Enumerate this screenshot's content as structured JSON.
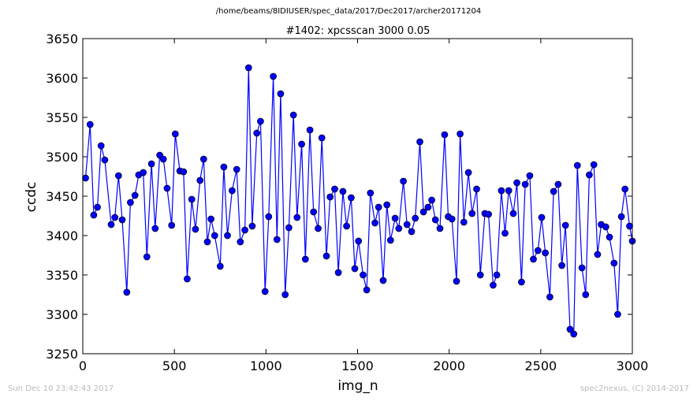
{
  "suptitle": "/home/beams/8IDIUSER/spec_data/2017/Dec2017/archer20171204",
  "footer": {
    "left": "Sun Dec 10 23:42:43 2017",
    "right": "spec2nexus, (C) 2014-2017"
  },
  "colors": {
    "series": "#0000ff",
    "axes": "#000000",
    "footer": "#bbbbbb"
  },
  "chart_data": {
    "type": "line",
    "title": "#1402: xpcsscan 3000 0.05",
    "xlabel": "img_n",
    "ylabel": "ccdc",
    "xlim": [
      0,
      3000
    ],
    "ylim": [
      3250,
      3650
    ],
    "xticks": [
      0,
      500,
      1000,
      1500,
      2000,
      2500,
      3000
    ],
    "yticks": [
      3250,
      3300,
      3350,
      3400,
      3450,
      3500,
      3550,
      3600,
      3650
    ],
    "grid": false,
    "marker": "circle",
    "series": [
      {
        "x": [
          15,
          40,
          60,
          80,
          100,
          120,
          155,
          175,
          195,
          215,
          240,
          260,
          285,
          305,
          330,
          350,
          375,
          395,
          420,
          440,
          460,
          485,
          505,
          530,
          550,
          570,
          595,
          615,
          640,
          660,
          680,
          700,
          720,
          750,
          770,
          790,
          815,
          840,
          860,
          885,
          905,
          925,
          950,
          970,
          995,
          1015,
          1040,
          1060,
          1080,
          1105,
          1125,
          1150,
          1170,
          1195,
          1215,
          1240,
          1260,
          1285,
          1305,
          1330,
          1350,
          1375,
          1395,
          1420,
          1440,
          1465,
          1485,
          1505,
          1530,
          1550,
          1570,
          1595,
          1615,
          1640,
          1660,
          1680,
          1705,
          1725,
          1750,
          1770,
          1795,
          1815,
          1840,
          1860,
          1885,
          1905,
          1925,
          1950,
          1975,
          1995,
          2015,
          2040,
          2060,
          2080,
          2105,
          2125,
          2150,
          2170,
          2195,
          2215,
          2240,
          2260,
          2285,
          2305,
          2325,
          2350,
          2370,
          2395,
          2415,
          2440,
          2460,
          2485,
          2505,
          2525,
          2550,
          2570,
          2595,
          2615,
          2635,
          2660,
          2680,
          2700,
          2725,
          2745,
          2765,
          2790,
          2810,
          2830,
          2855,
          2875,
          2900,
          2920,
          2940,
          2960,
          2985,
          3000
        ],
        "y": [
          3473,
          3541,
          3426,
          3436,
          3514,
          3496,
          3414,
          3423,
          3476,
          3420,
          3328,
          3442,
          3451,
          3477,
          3480,
          3373,
          3491,
          3409,
          3502,
          3497,
          3460,
          3413,
          3529,
          3482,
          3481,
          3345,
          3446,
          3408,
          3470,
          3497,
          3392,
          3421,
          3400,
          3361,
          3487,
          3400,
          3457,
          3484,
          3392,
          3407,
          3613,
          3412,
          3530,
          3545,
          3329,
          3424,
          3602,
          3395,
          3580,
          3325,
          3410,
          3553,
          3423,
          3516,
          3370,
          3534,
          3430,
          3409,
          3524,
          3374,
          3449,
          3459,
          3353,
          3456,
          3412,
          3448,
          3358,
          3393,
          3350,
          3331,
          3454,
          3416,
          3436,
          3343,
          3439,
          3394,
          3422,
          3409,
          3469,
          3414,
          3405,
          3422,
          3519,
          3430,
          3436,
          3445,
          3420,
          3409,
          3528,
          3424,
          3421,
          3342,
          3529,
          3417,
          3480,
          3428,
          3459,
          3350,
          3428,
          3427,
          3337,
          3350,
          3457,
          3403,
          3457,
          3428,
          3467,
          3341,
          3465,
          3476,
          3370,
          3381,
          3423,
          3378,
          3322,
          3456,
          3465,
          3362,
          3413,
          3281,
          3275,
          3489,
          3359,
          3325,
          3477,
          3490,
          3376,
          3414,
          3411,
          3398,
          3365,
          3300,
          3424,
          3459,
          3412,
          3393
        ]
      }
    ]
  }
}
